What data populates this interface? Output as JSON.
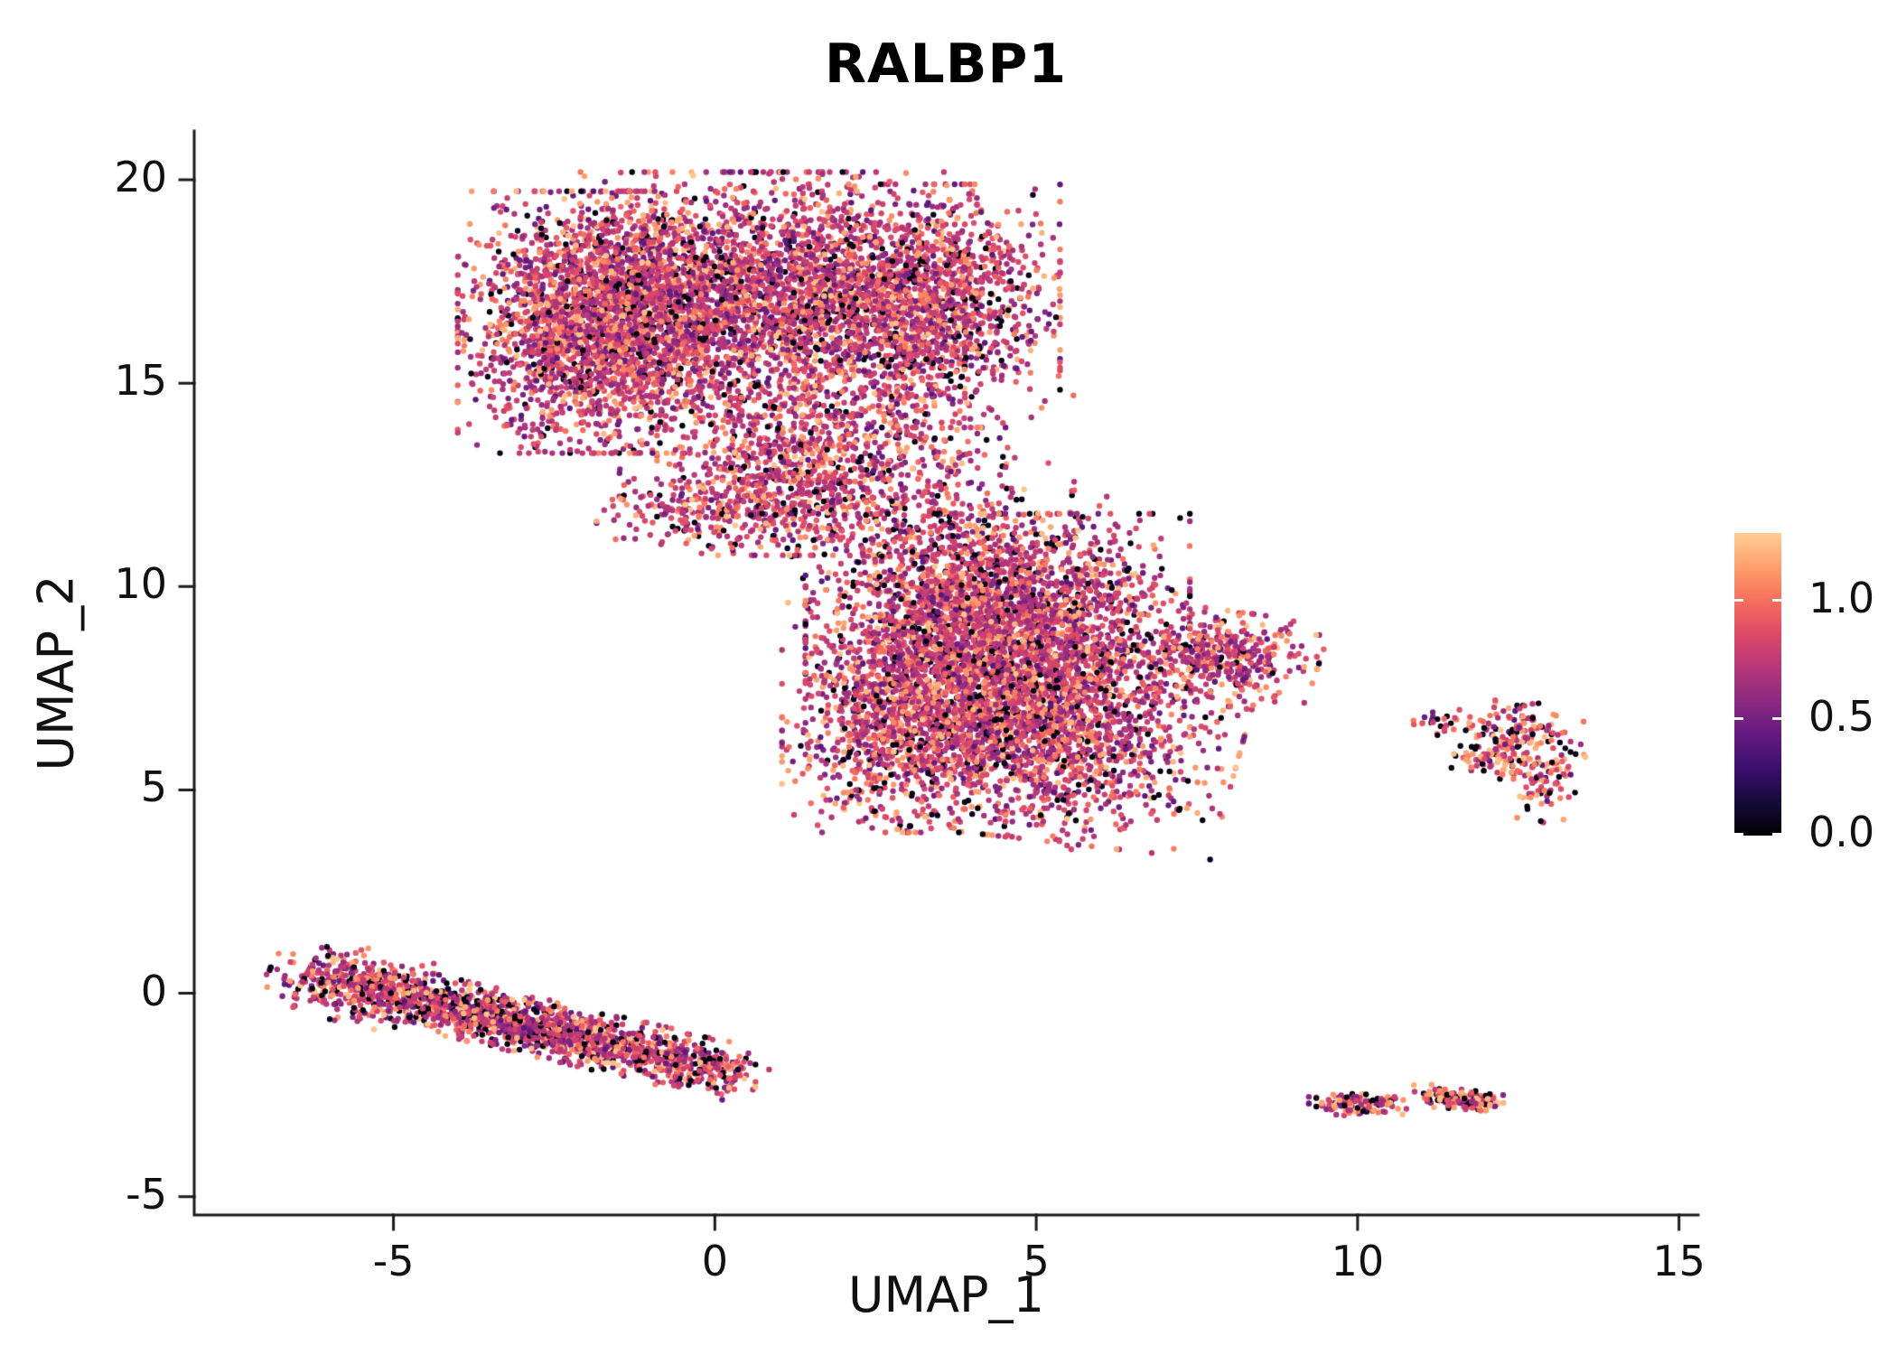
{
  "chart_data": {
    "type": "scatter",
    "title": "RALBP1",
    "xlabel": "UMAP_1",
    "ylabel": "UMAP_2",
    "xlim": [
      -8.1,
      15.3
    ],
    "ylim": [
      -5.45,
      21.2
    ],
    "x_ticks": [
      "-5",
      "0",
      "5",
      "10",
      "15"
    ],
    "x_tick_values": [
      -5,
      0,
      5,
      10,
      15
    ],
    "y_ticks": [
      "-5",
      "0",
      "5",
      "10",
      "15",
      "20"
    ],
    "y_tick_values": [
      -5,
      0,
      5,
      10,
      15,
      20
    ],
    "grid": false,
    "legend_position": "right",
    "point_radius_px": 3.2,
    "axis_color": "#1a1a1a",
    "seed": 42,
    "colormap_stops": [
      {
        "v": 0.0,
        "c": "#000004"
      },
      {
        "v": 0.1422,
        "c": "#160b39"
      },
      {
        "v": 0.2845,
        "c": "#3b0f70"
      },
      {
        "v": 0.4267,
        "c": "#641a80"
      },
      {
        "v": 0.569,
        "c": "#8c2981"
      },
      {
        "v": 0.7112,
        "c": "#b73779"
      },
      {
        "v": 0.8535,
        "c": "#de4968"
      },
      {
        "v": 0.9957,
        "c": "#f7705c"
      },
      {
        "v": 1.138,
        "c": "#fe9f6d"
      },
      {
        "v": 1.2802,
        "c": "#fecf92"
      }
    ],
    "colorbar": {
      "vmin": 0.0,
      "vmax": 1.2802,
      "tick_labels": [
        "1.0",
        "0.5",
        "0.0"
      ],
      "tick_values": [
        1.0,
        0.5,
        0.0
      ]
    },
    "value_mixtures": {
      "main": [
        [
          0.09,
          0.0,
          0.08
        ],
        [
          0.13,
          0.38,
          0.6
        ],
        [
          0.5,
          0.6,
          0.88
        ],
        [
          0.08,
          0.88,
          1.0
        ],
        [
          0.2,
          1.0,
          1.26
        ]
      ],
      "high_contrast": [
        [
          0.2,
          0.0,
          0.08
        ],
        [
          0.08,
          0.38,
          0.6
        ],
        [
          0.3,
          0.6,
          0.88
        ],
        [
          0.07,
          0.88,
          1.0
        ],
        [
          0.35,
          1.0,
          1.26
        ]
      ],
      "stripe": [
        [
          0.14,
          0.0,
          0.08
        ],
        [
          0.13,
          0.38,
          0.6
        ],
        [
          0.48,
          0.6,
          0.88
        ],
        [
          0.07,
          0.88,
          1.0
        ],
        [
          0.18,
          1.0,
          1.26
        ]
      ]
    },
    "clusters": [
      {
        "name": "upper-left-lobe",
        "cx": -1.7,
        "cy": 16.5,
        "sx": 1.0,
        "sy": 1.4,
        "rot_deg": 0,
        "n": 2800,
        "mix": "main"
      },
      {
        "name": "upper-mid-lobe",
        "cx": 0.9,
        "cy": 17.2,
        "sx": 1.3,
        "sy": 1.3,
        "rot_deg": 0,
        "n": 2300,
        "mix": "main"
      },
      {
        "name": "upper-right-lobe",
        "cx": 3.3,
        "cy": 16.9,
        "sx": 0.9,
        "sy": 1.3,
        "rot_deg": 0,
        "n": 1500,
        "mix": "main"
      },
      {
        "name": "upper-neck",
        "cx": 1.4,
        "cy": 13.3,
        "sx": 1.0,
        "sy": 1.1,
        "rot_deg": 0,
        "n": 750,
        "mix": "main"
      },
      {
        "name": "neck-left",
        "cx": 0.0,
        "cy": 11.85,
        "sx": 0.8,
        "sy": 0.45,
        "rot_deg": 0,
        "n": 280,
        "mix": "main"
      },
      {
        "name": "neck-scatter",
        "cx": 2.6,
        "cy": 12.4,
        "sx": 1.3,
        "sy": 1.0,
        "rot_deg": 0,
        "n": 360,
        "mix": "main"
      },
      {
        "name": "center-main",
        "cx": 4.4,
        "cy": 8.8,
        "sx": 1.3,
        "sy": 1.3,
        "rot_deg": 0,
        "n": 3100,
        "mix": "main"
      },
      {
        "name": "center-lower",
        "cx": 5.2,
        "cy": 6.3,
        "sx": 1.3,
        "sy": 1.1,
        "rot_deg": -10,
        "n": 1500,
        "mix": "main"
      },
      {
        "name": "center-lower-left",
        "cx": 3.0,
        "cy": 6.6,
        "sx": 0.85,
        "sy": 1.15,
        "rot_deg": 0,
        "n": 950,
        "mix": "main"
      },
      {
        "name": "center-right-tip",
        "cx": 7.9,
        "cy": 8.25,
        "sx": 0.65,
        "sy": 0.5,
        "rot_deg": -12,
        "n": 420,
        "mix": "main"
      },
      {
        "name": "center-top-scatter",
        "cx": 3.9,
        "cy": 10.8,
        "sx": 1.2,
        "sy": 0.7,
        "rot_deg": 0,
        "n": 300,
        "mix": "main"
      },
      {
        "name": "center-bottom-strays",
        "cx": 5.8,
        "cy": 4.0,
        "sx": 0.3,
        "sy": 0.2,
        "rot_deg": 0,
        "n": 10,
        "mix": "main"
      },
      {
        "name": "right-small-a",
        "cx": 12.55,
        "cy": 6.4,
        "sx": 0.42,
        "sy": 0.35,
        "rot_deg": 0,
        "n": 120,
        "mix": "high_contrast"
      },
      {
        "name": "right-small-b",
        "cx": 12.9,
        "cy": 5.35,
        "sx": 0.28,
        "sy": 0.5,
        "rot_deg": 0,
        "n": 90,
        "mix": "high_contrast"
      },
      {
        "name": "right-small-c",
        "cx": 12.15,
        "cy": 5.9,
        "sx": 0.3,
        "sy": 0.35,
        "rot_deg": 0,
        "n": 75,
        "mix": "high_contrast"
      },
      {
        "name": "right-small-d",
        "cx": 11.35,
        "cy": 6.7,
        "sx": 0.3,
        "sy": 0.15,
        "rot_deg": 10,
        "n": 30,
        "mix": "high_contrast"
      },
      {
        "name": "bottom-left-stripe",
        "cx": -3.0,
        "cy": -0.75,
        "sx": 1.55,
        "sy": 0.3,
        "rot_deg": -20,
        "n": 1500,
        "mix": "stripe"
      },
      {
        "name": "bottom-left-head",
        "cx": -5.6,
        "cy": 0.2,
        "sx": 0.6,
        "sy": 0.4,
        "rot_deg": -20,
        "n": 280,
        "mix": "stripe"
      },
      {
        "name": "bottom-left-tail",
        "cx": -0.3,
        "cy": -1.7,
        "sx": 0.5,
        "sy": 0.28,
        "rot_deg": -15,
        "n": 200,
        "mix": "stripe"
      },
      {
        "name": "bottom-right-a",
        "cx": 10.0,
        "cy": -2.72,
        "sx": 0.33,
        "sy": 0.14,
        "rot_deg": 0,
        "n": 130,
        "mix": "high_contrast"
      },
      {
        "name": "bottom-right-a2",
        "cx": 10.55,
        "cy": -2.62,
        "sx": 0.07,
        "sy": 0.05,
        "rot_deg": 0,
        "n": 12,
        "mix": "high_contrast"
      },
      {
        "name": "bottom-right-b",
        "cx": 11.45,
        "cy": -2.55,
        "sx": 0.26,
        "sy": 0.12,
        "rot_deg": -5,
        "n": 110,
        "mix": "high_contrast"
      },
      {
        "name": "bottom-right-b2",
        "cx": 11.9,
        "cy": -2.68,
        "sx": 0.16,
        "sy": 0.09,
        "rot_deg": 0,
        "n": 55,
        "mix": "high_contrast"
      }
    ]
  }
}
